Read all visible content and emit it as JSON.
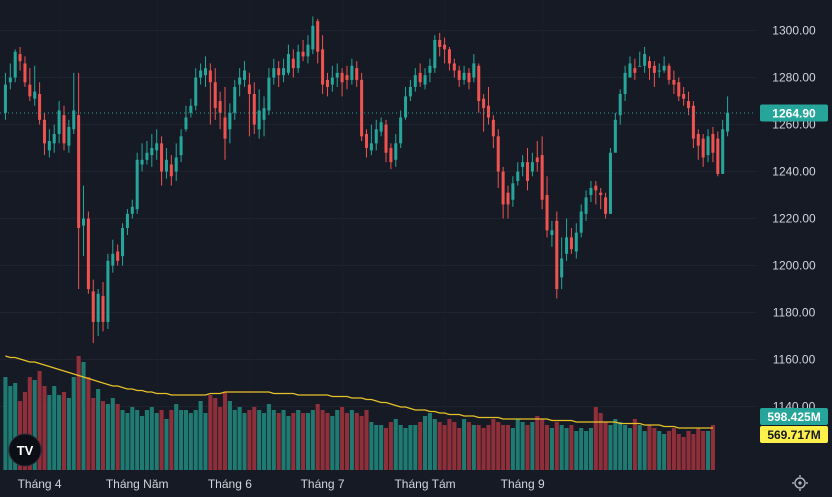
{
  "chart_data": {
    "type": "candlestick",
    "price_axis": {
      "ticks": [
        1140,
        1160,
        1180,
        1200,
        1220,
        1240,
        1260,
        1280,
        1300
      ],
      "range": [
        1113,
        1313
      ]
    },
    "last_price_label": "1264.90",
    "last_price": 1264.9,
    "volume_label": "598.425M",
    "volume_ma_label": "569.717M",
    "x_labels": [
      "Tháng 4",
      "Tháng Năm",
      "Tháng 6",
      "Tháng 7",
      "Tháng Tám",
      "Tháng 9"
    ],
    "x_label_positions": [
      7,
      27,
      46,
      65,
      86,
      106
    ],
    "candles": [
      [
        1277,
        1265,
        1282,
        1262
      ],
      [
        1280,
        1278,
        1286,
        1275
      ],
      [
        1291,
        1280,
        1292,
        1278
      ],
      [
        1287,
        1290,
        1293,
        1283
      ],
      [
        1278,
        1286,
        1289,
        1276
      ],
      [
        1272,
        1277,
        1284,
        1270
      ],
      [
        1274,
        1271,
        1285,
        1268
      ],
      [
        1262,
        1273,
        1278,
        1260
      ],
      [
        1252,
        1262,
        1265,
        1247
      ],
      [
        1253,
        1249,
        1258,
        1246
      ],
      [
        1256,
        1252,
        1260,
        1248
      ],
      [
        1266,
        1256,
        1270,
        1252
      ],
      [
        1252,
        1264,
        1268,
        1249
      ],
      [
        1259,
        1251,
        1262,
        1248
      ],
      [
        1266,
        1258,
        1282,
        1256
      ],
      [
        1216,
        1264,
        1282,
        1190
      ],
      [
        1220,
        1217,
        1234,
        1204
      ],
      [
        1190,
        1220,
        1223,
        1188
      ],
      [
        1176,
        1189,
        1194,
        1167
      ],
      [
        1188,
        1176,
        1190,
        1170
      ],
      [
        1176,
        1187,
        1193,
        1172
      ],
      [
        1202,
        1176,
        1205,
        1173
      ],
      [
        1205,
        1200,
        1211,
        1197
      ],
      [
        1202,
        1206,
        1209,
        1200
      ],
      [
        1216,
        1204,
        1218,
        1200
      ],
      [
        1222,
        1216,
        1224,
        1213
      ],
      [
        1225,
        1222,
        1228,
        1220
      ],
      [
        1245,
        1224,
        1248,
        1222
      ],
      [
        1245,
        1243,
        1252,
        1240
      ],
      [
        1248,
        1245,
        1253,
        1243
      ],
      [
        1250,
        1247,
        1256,
        1242
      ],
      [
        1252,
        1249,
        1258,
        1245
      ],
      [
        1240,
        1252,
        1255,
        1234
      ],
      [
        1245,
        1240,
        1250,
        1237
      ],
      [
        1238,
        1243,
        1247,
        1234
      ],
      [
        1246,
        1240,
        1252,
        1236
      ],
      [
        1255,
        1247,
        1258,
        1244
      ],
      [
        1263,
        1258,
        1268,
        1257
      ],
      [
        1268,
        1265,
        1271,
        1263
      ],
      [
        1280,
        1268,
        1284,
        1266
      ],
      [
        1283,
        1280,
        1286,
        1277
      ],
      [
        1284,
        1281,
        1289,
        1276
      ],
      [
        1278,
        1283,
        1286,
        1260
      ],
      [
        1267,
        1278,
        1284,
        1262
      ],
      [
        1265,
        1270,
        1274,
        1258
      ],
      [
        1254,
        1263,
        1276,
        1245
      ],
      [
        1265,
        1258,
        1269,
        1252
      ],
      [
        1276,
        1265,
        1279,
        1262
      ],
      [
        1280,
        1277,
        1284,
        1272
      ],
      [
        1283,
        1279,
        1287,
        1276
      ],
      [
        1273,
        1277,
        1282,
        1255
      ],
      [
        1260,
        1273,
        1278,
        1256
      ],
      [
        1266,
        1258,
        1275,
        1254
      ],
      [
        1267,
        1262,
        1272,
        1255
      ],
      [
        1280,
        1266,
        1284,
        1264
      ],
      [
        1284,
        1280,
        1288,
        1277
      ],
      [
        1281,
        1284,
        1287,
        1276
      ],
      [
        1284,
        1281,
        1288,
        1278
      ],
      [
        1290,
        1282,
        1294,
        1281
      ],
      [
        1284,
        1288,
        1292,
        1280
      ],
      [
        1291,
        1284,
        1294,
        1282
      ],
      [
        1289,
        1291,
        1296,
        1287
      ],
      [
        1294,
        1289,
        1298,
        1286
      ],
      [
        1302,
        1292,
        1306,
        1290
      ],
      [
        1291,
        1304,
        1305,
        1286
      ],
      [
        1277,
        1292,
        1298,
        1273
      ],
      [
        1276,
        1279,
        1282,
        1272
      ],
      [
        1280,
        1277,
        1285,
        1274
      ],
      [
        1282,
        1280,
        1286,
        1276
      ],
      [
        1278,
        1282,
        1284,
        1272
      ],
      [
        1279,
        1281,
        1285,
        1275
      ],
      [
        1285,
        1279,
        1288,
        1277
      ],
      [
        1279,
        1284,
        1287,
        1276
      ],
      [
        1255,
        1279,
        1282,
        1253
      ],
      [
        1250,
        1256,
        1258,
        1246
      ],
      [
        1252,
        1249,
        1260,
        1247
      ],
      [
        1258,
        1252,
        1262,
        1249
      ],
      [
        1261,
        1257,
        1263,
        1255
      ],
      [
        1248,
        1260,
        1262,
        1244
      ],
      [
        1244,
        1250,
        1252,
        1241
      ],
      [
        1252,
        1245,
        1256,
        1242
      ],
      [
        1263,
        1252,
        1266,
        1250
      ],
      [
        1272,
        1263,
        1276,
        1262
      ],
      [
        1276,
        1272,
        1279,
        1270
      ],
      [
        1281,
        1276,
        1284,
        1274
      ],
      [
        1278,
        1282,
        1286,
        1276
      ],
      [
        1281,
        1277,
        1284,
        1275
      ],
      [
        1285,
        1282,
        1288,
        1278
      ],
      [
        1296,
        1284,
        1298,
        1282
      ],
      [
        1293,
        1296,
        1299,
        1289
      ],
      [
        1292,
        1294,
        1297,
        1286
      ],
      [
        1286,
        1292,
        1293,
        1283
      ],
      [
        1283,
        1286,
        1288,
        1280
      ],
      [
        1279,
        1283,
        1285,
        1276
      ],
      [
        1282,
        1279,
        1285,
        1277
      ],
      [
        1278,
        1282,
        1284,
        1275
      ],
      [
        1286,
        1280,
        1290,
        1278
      ],
      [
        1270,
        1285,
        1286,
        1265
      ],
      [
        1267,
        1271,
        1273,
        1257
      ],
      [
        1263,
        1268,
        1276,
        1260
      ],
      [
        1255,
        1262,
        1264,
        1250
      ],
      [
        1240,
        1255,
        1258,
        1233
      ],
      [
        1226,
        1240,
        1242,
        1220
      ],
      [
        1226,
        1231,
        1234,
        1220
      ],
      [
        1235,
        1228,
        1238,
        1225
      ],
      [
        1240,
        1236,
        1244,
        1234
      ],
      [
        1244,
        1242,
        1247,
        1238
      ],
      [
        1236,
        1244,
        1250,
        1232
      ],
      [
        1244,
        1240,
        1248,
        1238
      ],
      [
        1244,
        1246,
        1253,
        1240
      ],
      [
        1228,
        1247,
        1255,
        1224
      ],
      [
        1215,
        1230,
        1238,
        1212
      ],
      [
        1215,
        1213,
        1219,
        1208
      ],
      [
        1190,
        1219,
        1223,
        1186
      ],
      [
        1203,
        1195,
        1212,
        1190
      ],
      [
        1212,
        1205,
        1220,
        1202
      ],
      [
        1207,
        1212,
        1216,
        1205
      ],
      [
        1214,
        1206,
        1218,
        1203
      ],
      [
        1223,
        1214,
        1226,
        1212
      ],
      [
        1229,
        1222,
        1232,
        1219
      ],
      [
        1233,
        1230,
        1236,
        1227
      ],
      [
        1232,
        1234,
        1236,
        1226
      ],
      [
        1230,
        1231,
        1233,
        1224
      ],
      [
        1222,
        1229,
        1231,
        1220
      ],
      [
        1248,
        1222,
        1250,
        1222
      ],
      [
        1262,
        1248,
        1265,
        1258
      ],
      [
        1273,
        1264,
        1275,
        1260
      ],
      [
        1282,
        1273,
        1285,
        1270
      ],
      [
        1286,
        1280,
        1289,
        1281
      ],
      [
        1282,
        1284,
        1288,
        1279
      ],
      [
        1285,
        1285,
        1291,
        1285
      ],
      [
        1290,
        1285,
        1293,
        1282
      ],
      [
        1284,
        1287,
        1289,
        1279
      ],
      [
        1282,
        1285,
        1287,
        1276
      ],
      [
        1283,
        1283,
        1286,
        1280
      ],
      [
        1285,
        1283,
        1289,
        1282
      ],
      [
        1279,
        1285,
        1286,
        1277
      ],
      [
        1277,
        1279,
        1283,
        1273
      ],
      [
        1272,
        1278,
        1280,
        1270
      ],
      [
        1271,
        1273,
        1276,
        1268
      ],
      [
        1267,
        1270,
        1274,
        1264
      ],
      [
        1254,
        1268,
        1270,
        1250
      ],
      [
        1251,
        1256,
        1258,
        1245
      ],
      [
        1246,
        1254,
        1256,
        1242
      ],
      [
        1255,
        1247,
        1258,
        1244
      ],
      [
        1248,
        1256,
        1259,
        1244
      ],
      [
        1239,
        1254,
        1257,
        1238
      ],
      [
        1258,
        1239,
        1262,
        1239
      ],
      [
        1265,
        1257,
        1272,
        1255
      ]
    ],
    "volumes": [
      62,
      56,
      58,
      46,
      52,
      62,
      60,
      66,
      56,
      50,
      56,
      50,
      52,
      48,
      62,
      76,
      72,
      62,
      48,
      54,
      46,
      44,
      48,
      44,
      40,
      38,
      42,
      40,
      36,
      40,
      42,
      38,
      40,
      34,
      40,
      44,
      40,
      40,
      38,
      40,
      46,
      38,
      50,
      48,
      42,
      52,
      46,
      40,
      42,
      38,
      40,
      42,
      40,
      38,
      44,
      40,
      38,
      40,
      36,
      38,
      40,
      38,
      38,
      40,
      44,
      40,
      38,
      36,
      40,
      42,
      38,
      40,
      38,
      36,
      40,
      32,
      30,
      30,
      28,
      32,
      34,
      30,
      28,
      30,
      30,
      32,
      36,
      38,
      34,
      32,
      30,
      34,
      32,
      28,
      34,
      32,
      30,
      30,
      28,
      30,
      34,
      32,
      30,
      30,
      28,
      34,
      32,
      30,
      32,
      36,
      34,
      30,
      28,
      32,
      30,
      28,
      30,
      26,
      28,
      26,
      28,
      42,
      38,
      32,
      30,
      34,
      32,
      30,
      28,
      34,
      30,
      26,
      30,
      28,
      26,
      24,
      26,
      28,
      24,
      22,
      26,
      24,
      28,
      26,
      26,
      30
    ],
    "volume_ma": [
      76,
      75,
      75,
      74,
      73,
      72,
      72,
      71,
      70,
      69,
      68,
      67,
      66,
      65,
      64,
      63,
      62,
      61,
      60,
      59,
      58,
      57,
      56,
      56,
      55,
      54,
      54,
      53,
      53,
      52,
      52,
      51,
      51,
      51,
      50,
      50,
      50,
      50,
      50,
      50,
      50,
      50,
      51,
      51,
      51,
      52,
      52,
      52,
      52,
      52,
      52,
      52,
      52,
      52,
      52,
      51,
      51,
      51,
      51,
      51,
      50,
      50,
      50,
      50,
      50,
      50,
      50,
      49,
      49,
      49,
      49,
      48,
      48,
      48,
      47,
      47,
      46,
      45,
      45,
      44,
      43,
      42,
      42,
      41,
      40,
      40,
      40,
      39,
      39,
      38,
      38,
      37,
      37,
      37,
      36,
      36,
      36,
      35,
      35,
      35,
      35,
      35,
      34,
      34,
      34,
      34,
      34,
      34,
      34,
      34,
      34,
      34,
      33,
      33,
      33,
      33,
      33,
      32,
      32,
      32,
      32,
      32,
      32,
      32,
      32,
      32,
      31,
      31,
      31,
      31,
      31,
      30,
      30,
      30,
      30,
      29,
      29,
      29,
      28,
      28,
      28,
      28,
      28,
      28,
      28,
      28
    ],
    "colors": {
      "up": "#26a69a",
      "down": "#ef5350",
      "up_volume": "#1f7a72",
      "down_volume": "#8f2f3a",
      "volume_ma": "#e6c229",
      "last_price_badge": "#26a69a",
      "volume_ma_badge": "#fdf04a"
    }
  },
  "logo_text": "TV"
}
